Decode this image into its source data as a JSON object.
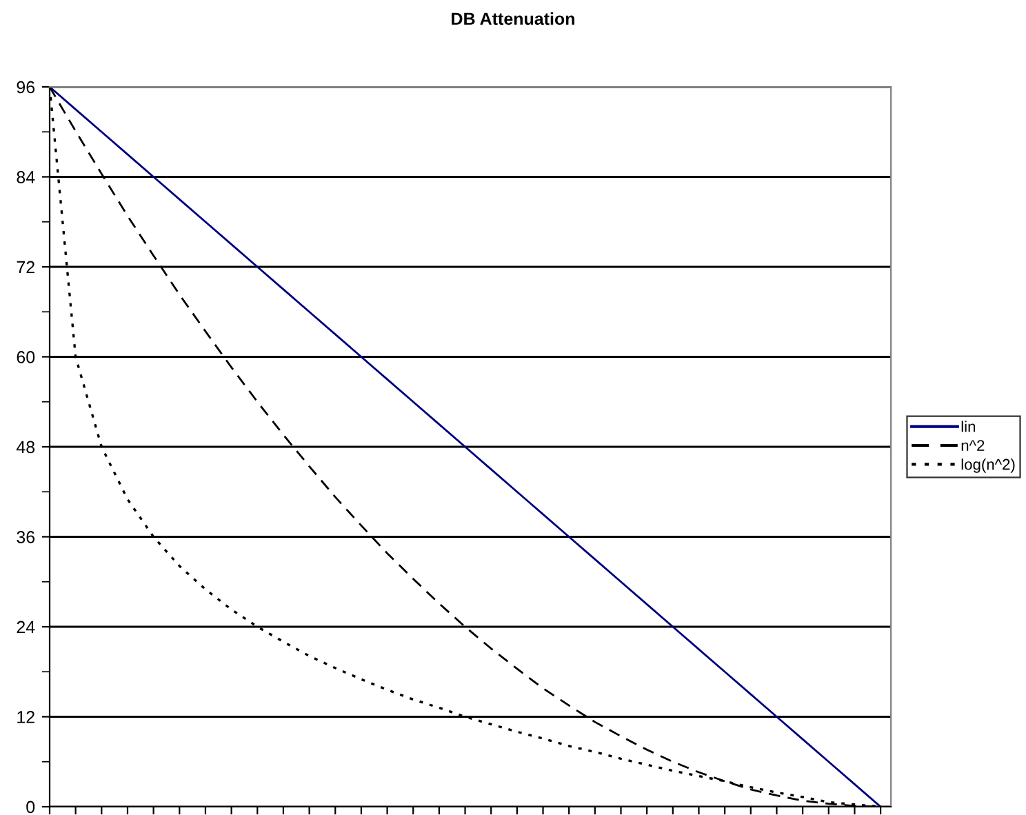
{
  "chart_data": {
    "type": "line",
    "title": "DB Attenuation",
    "categories": [
      null,
      null,
      null,
      null,
      null,
      null,
      null,
      null,
      null,
      null,
      null,
      null,
      null,
      null,
      null,
      null,
      null,
      null,
      null,
      null,
      null,
      null,
      null,
      null,
      null,
      null,
      null,
      null,
      null,
      null,
      null,
      null,
      null
    ],
    "series": [
      {
        "name": "lin",
        "color": "#000080",
        "line_style": "solid",
        "values": [
          96,
          93,
          90,
          87,
          84,
          81,
          78,
          75,
          72,
          69,
          66,
          63,
          60,
          57,
          54,
          51,
          48,
          45,
          42,
          39,
          36,
          33,
          30,
          27,
          24,
          21,
          18,
          15,
          12,
          9,
          6,
          3,
          0
        ]
      },
      {
        "name": "n^2",
        "color": "#000000",
        "line_style": "dashed",
        "values": [
          96,
          90.1,
          84.4,
          78.8,
          73.5,
          68.3,
          63.4,
          58.6,
          54,
          49.6,
          45.4,
          41.3,
          37.5,
          33.8,
          30.4,
          27.1,
          24,
          21.1,
          18.4,
          15.8,
          13.5,
          11.3,
          9.4,
          7.6,
          6,
          4.6,
          3.4,
          2.3,
          1.5,
          0.8,
          0.4,
          0.1,
          0
        ]
      },
      {
        "name": "log(n^2)",
        "color": "#000000",
        "line_style": "dotted",
        "values": [
          96,
          60,
          48,
          41,
          36,
          32.1,
          29,
          26.3,
          24,
          22,
          20.1,
          18.5,
          17,
          15.6,
          14.3,
          13.2,
          12,
          11,
          10,
          9.1,
          8.1,
          7.3,
          6.4,
          5.6,
          4.8,
          4.1,
          3.4,
          2.6,
          1.9,
          1.3,
          0.6,
          0.3,
          0
        ]
      }
    ],
    "ylim": [
      0,
      96
    ],
    "yticks": [
      0,
      {
        "value": 6,
        "label": null
      },
      12,
      {
        "value": 18,
        "label": null
      },
      24,
      {
        "value": 30,
        "label": null
      },
      36,
      {
        "value": 42,
        "label": null
      },
      48,
      {
        "value": 54,
        "label": null
      },
      60,
      {
        "value": 66,
        "label": null
      },
      72,
      {
        "value": 78,
        "label": null
      },
      84,
      {
        "value": 90,
        "label": null
      },
      96
    ],
    "grid": "y",
    "legend": "right",
    "marker": "none"
  }
}
